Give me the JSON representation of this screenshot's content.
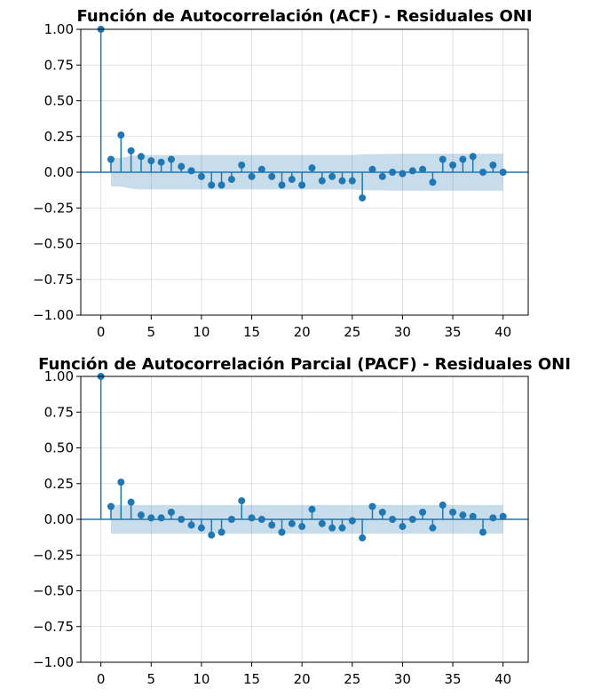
{
  "colors": {
    "stem": "#1f77b4",
    "band": "#1f77b4",
    "grid": "#d9d9d9"
  },
  "chart_data": [
    {
      "type": "stem",
      "title": "Función de Autocorrelación (ACF) - Residuales ONI",
      "xlim": [
        -2,
        42.5
      ],
      "ylim": [
        -1.0,
        1.0
      ],
      "grid": true,
      "xticks": [
        0,
        5,
        10,
        15,
        20,
        25,
        30,
        35,
        40
      ],
      "xtick_labels": [
        "0",
        "5",
        "10",
        "15",
        "20",
        "25",
        "30",
        "35",
        "40"
      ],
      "yticks": [
        -1.0,
        -0.75,
        -0.5,
        -0.25,
        0.0,
        0.25,
        0.5,
        0.75,
        1.0
      ],
      "ytick_labels": [
        "−1.00",
        "−0.75",
        "−0.50",
        "−0.25",
        "0.00",
        "0.25",
        "0.50",
        "0.75",
        "1.00"
      ],
      "lags": [
        0,
        1,
        2,
        3,
        4,
        5,
        6,
        7,
        8,
        9,
        10,
        11,
        12,
        13,
        14,
        15,
        16,
        17,
        18,
        19,
        20,
        21,
        22,
        23,
        24,
        25,
        26,
        27,
        28,
        29,
        30,
        31,
        32,
        33,
        34,
        35,
        36,
        37,
        38,
        39,
        40
      ],
      "values": [
        1.0,
        0.09,
        0.26,
        0.15,
        0.11,
        0.08,
        0.07,
        0.09,
        0.04,
        0.01,
        -0.03,
        -0.09,
        -0.09,
        -0.05,
        0.05,
        -0.03,
        0.02,
        -0.03,
        -0.09,
        -0.05,
        -0.09,
        0.03,
        -0.06,
        -0.03,
        -0.06,
        -0.06,
        -0.18,
        0.02,
        -0.03,
        0.0,
        -0.01,
        0.01,
        0.02,
        -0.07,
        0.09,
        0.05,
        0.09,
        0.11,
        0.0,
        0.05,
        0.0
      ],
      "confidence_band": {
        "lags": [
          1,
          2,
          3,
          4,
          5,
          10,
          15,
          20,
          25,
          26,
          30,
          35,
          40
        ],
        "upper": [
          0.1,
          0.1,
          0.115,
          0.12,
          0.12,
          0.12,
          0.12,
          0.12,
          0.12,
          0.125,
          0.13,
          0.13,
          0.13
        ],
        "lower": [
          -0.1,
          -0.1,
          -0.115,
          -0.12,
          -0.12,
          -0.12,
          -0.12,
          -0.12,
          -0.12,
          -0.125,
          -0.13,
          -0.13,
          -0.13
        ]
      }
    },
    {
      "type": "stem",
      "title": "Función de Autocorrelación Parcial (PACF) - Residuales ONI",
      "xlim": [
        -2,
        42.5
      ],
      "ylim": [
        -1.0,
        1.0
      ],
      "grid": true,
      "xticks": [
        0,
        5,
        10,
        15,
        20,
        25,
        30,
        35,
        40
      ],
      "xtick_labels": [
        "0",
        "5",
        "10",
        "15",
        "20",
        "25",
        "30",
        "35",
        "40"
      ],
      "yticks": [
        -1.0,
        -0.75,
        -0.5,
        -0.25,
        0.0,
        0.25,
        0.5,
        0.75,
        1.0
      ],
      "ytick_labels": [
        "−1.00",
        "−0.75",
        "−0.50",
        "−0.25",
        "0.00",
        "0.25",
        "0.50",
        "0.75",
        "1.00"
      ],
      "lags": [
        0,
        1,
        2,
        3,
        4,
        5,
        6,
        7,
        8,
        9,
        10,
        11,
        12,
        13,
        14,
        15,
        16,
        17,
        18,
        19,
        20,
        21,
        22,
        23,
        24,
        25,
        26,
        27,
        28,
        29,
        30,
        31,
        32,
        33,
        34,
        35,
        36,
        37,
        38,
        39,
        40
      ],
      "values": [
        1.0,
        0.09,
        0.26,
        0.12,
        0.03,
        0.01,
        0.01,
        0.05,
        0.0,
        -0.04,
        -0.06,
        -0.11,
        -0.09,
        0.0,
        0.13,
        0.01,
        0.0,
        -0.04,
        -0.09,
        -0.03,
        -0.05,
        0.07,
        -0.03,
        -0.06,
        -0.06,
        -0.01,
        -0.13,
        0.09,
        0.05,
        0.0,
        -0.05,
        0.0,
        0.05,
        -0.06,
        0.1,
        0.05,
        0.03,
        0.02,
        -0.09,
        0.01,
        0.02
      ],
      "confidence_band": {
        "lags": [
          1,
          40
        ],
        "upper": [
          0.1,
          0.1
        ],
        "lower": [
          -0.1,
          -0.1
        ]
      }
    }
  ]
}
